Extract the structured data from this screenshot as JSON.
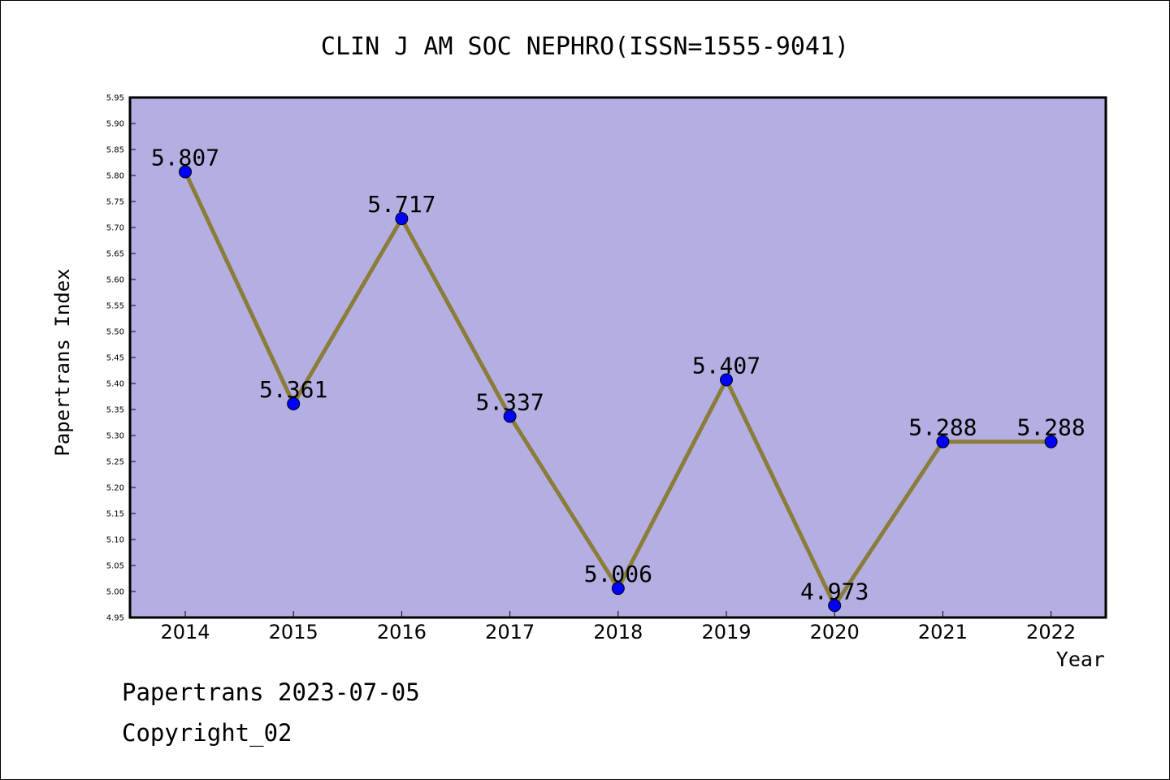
{
  "chart_data": {
    "type": "line",
    "title": "CLIN J AM SOC NEPHRO(ISSN=1555-9041)",
    "xlabel": "Year",
    "ylabel": "Papertrans Index",
    "categories": [
      "2014",
      "2015",
      "2016",
      "2017",
      "2018",
      "2019",
      "2020",
      "2021",
      "2022"
    ],
    "series": [
      {
        "values": [
          5.807,
          5.361,
          5.717,
          5.337,
          5.006,
          5.407,
          4.973,
          5.288,
          5.288
        ]
      }
    ],
    "data_labels": [
      "5.807",
      "5.361",
      "5.717",
      "5.337",
      "5.006",
      "5.407",
      "4.973",
      "5.288",
      "5.288"
    ],
    "ylim": [
      4.95,
      5.95
    ],
    "yticks": [
      "4.95",
      "5.00",
      "5.05",
      "5.10",
      "5.15",
      "5.20",
      "5.25",
      "5.30",
      "5.35",
      "5.40",
      "5.45",
      "5.50",
      "5.55",
      "5.60",
      "5.65",
      "5.70",
      "5.75",
      "5.80",
      "5.85",
      "5.90",
      "5.95"
    ],
    "grid": false,
    "colors": {
      "plot_background": "#b4afe2",
      "line": "#8b7c3a",
      "marker": "#0000ff"
    }
  },
  "footer": {
    "line1": "Papertrans 2023-07-05",
    "line2": "Copyright_02"
  }
}
